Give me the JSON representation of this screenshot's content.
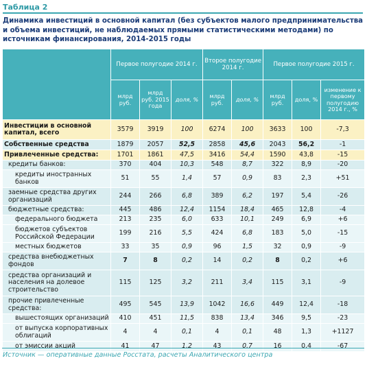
{
  "tag": "Таблица 2",
  "title": "Динамика инвестиций в основной капитал (без субъектов малого предпринимательства и объема инвестиций, не наблюдаемых прямыми статистическими методами) по источникам финансирования, 2014-2015 годы",
  "header": {
    "group1": "Первое полугодие 2014 г.",
    "group2": "Второе полугодие 2014 г.",
    "group3": "Первое полугодие 2015 г.",
    "sub": [
      "млрд руб.",
      "млрд руб. 2015 года",
      "доля, %",
      "млрд руб.",
      "доля, %",
      "млрд руб.",
      "доля, %",
      "изменение к первому полугодию 2014 г., %"
    ]
  },
  "rows": [
    {
      "label": "Инвестиции в основной капитал, всего",
      "v": [
        "3579",
        "3919",
        "100",
        "6274",
        "100",
        "3633",
        "100",
        "-7,3"
      ]
    },
    {
      "label": "Собственные средства",
      "v": [
        "1879",
        "2057",
        "52,5",
        "2858",
        "45,6",
        "2043",
        "56,2",
        "-1"
      ]
    },
    {
      "label": "Привлеченные средства:",
      "v": [
        "1701",
        "1861",
        "47,5",
        "3416",
        "54,4",
        "1590",
        "43,8",
        "-15"
      ]
    },
    {
      "label": "кредиты банков:",
      "v": [
        "370",
        "404",
        "10,3",
        "548",
        "8,7",
        "322",
        "8,9",
        "-20"
      ]
    },
    {
      "label": "кредиты иностранных банков",
      "v": [
        "51",
        "55",
        "1,4",
        "57",
        "0,9",
        "83",
        "2,3",
        "+51"
      ]
    },
    {
      "label": "заемные средства других организаций",
      "v": [
        "244",
        "266",
        "6,8",
        "389",
        "6,2",
        "197",
        "5,4",
        "-26"
      ]
    },
    {
      "label": "бюджетные средства:",
      "v": [
        "445",
        "486",
        "12,4",
        "1154",
        "18,4",
        "465",
        "12,8",
        "-4"
      ]
    },
    {
      "label": "федерального бюджета",
      "v": [
        "213",
        "235",
        "6,0",
        "633",
        "10,1",
        "249",
        "6,9",
        "+6"
      ]
    },
    {
      "label": "бюджетов субъектов Российской Федерации",
      "v": [
        "199",
        "216",
        "5,5",
        "424",
        "6,8",
        "183",
        "5,0",
        "-15"
      ]
    },
    {
      "label": "местных бюджетов",
      "v": [
        "33",
        "35",
        "0,9",
        "96",
        "1,5",
        "32",
        "0,9",
        "-9"
      ]
    },
    {
      "label": "средства внебюджетных фондов",
      "v": [
        "7",
        "8",
        "0,2",
        "14",
        "0,2",
        "8",
        "0,2",
        "+6"
      ]
    },
    {
      "label": "средства организаций и населения на долевое строительство",
      "v": [
        "115",
        "125",
        "3,2",
        "211",
        "3,4",
        "115",
        "3,1",
        "-9"
      ]
    },
    {
      "label": "прочие привлеченные средства:",
      "v": [
        "495",
        "545",
        "13,9",
        "1042",
        "16,6",
        "449",
        "12,4",
        "-18"
      ]
    },
    {
      "label": "вышестоящих организаций",
      "v": [
        "410",
        "451",
        "11,5",
        "838",
        "13,4",
        "346",
        "9,5",
        "-23"
      ]
    },
    {
      "label": "от выпуска корпоративных облигаций",
      "v": [
        "4",
        "4",
        "0,1",
        "4",
        "0,1",
        "48",
        "1,3",
        "+1127"
      ]
    },
    {
      "label": "от эмиссии акций",
      "v": [
        "41",
        "47",
        "1,2",
        "43",
        "0,7",
        "16",
        "0,4",
        "-67"
      ]
    }
  ],
  "source": "Источник — оперативные данные Росстата, расчеты Аналитического центра"
}
